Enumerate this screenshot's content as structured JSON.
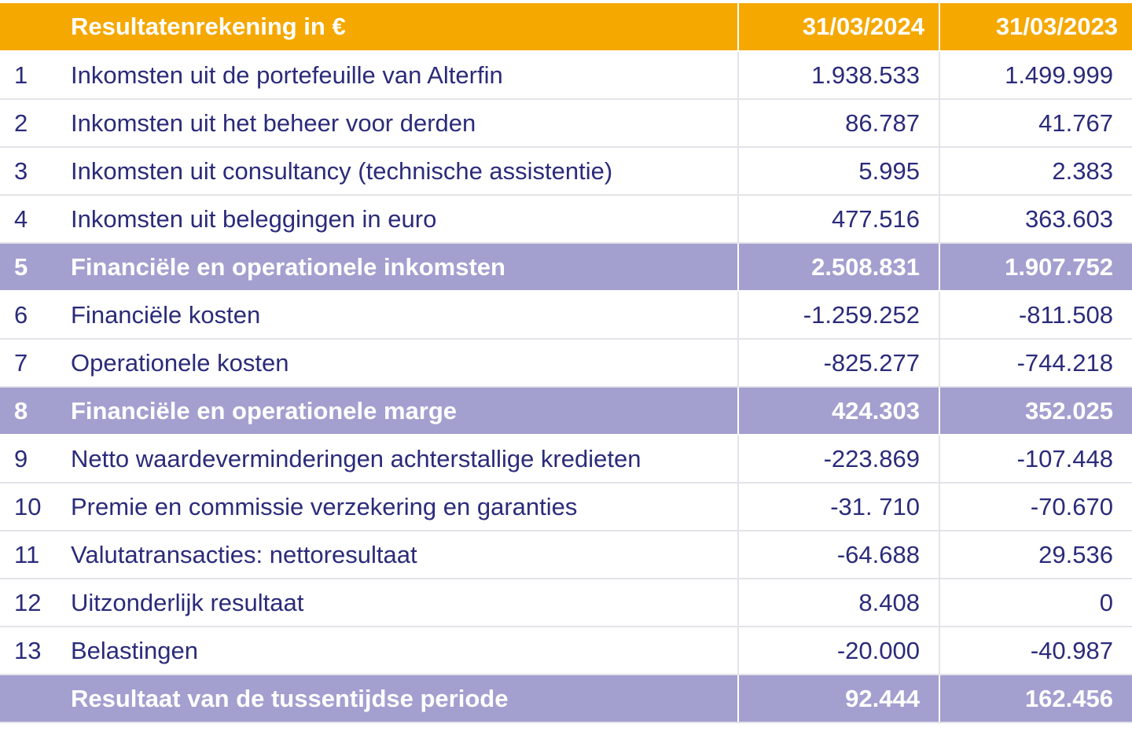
{
  "table": {
    "header": {
      "title": "Resultatenrekening in €",
      "col_2024": "31/03/2024",
      "col_2023": "31/03/2023"
    },
    "rows": [
      {
        "num": "1",
        "label": "Inkomsten uit de portefeuille van Alterfin",
        "v2024": "1.938.533",
        "v2023": "1.499.999"
      },
      {
        "num": "2",
        "label": "Inkomsten uit het beheer voor derden",
        "v2024": "86.787",
        "v2023": "41.767"
      },
      {
        "num": "3",
        "label": "Inkomsten uit consultancy (technische assistentie)",
        "v2024": "5.995",
        "v2023": "2.383"
      },
      {
        "num": "4",
        "label": "Inkomsten uit beleggingen in euro",
        "v2024": "477.516",
        "v2023": "363.603"
      },
      {
        "num": "5",
        "label": "Financiële en operationele inkomsten",
        "v2024": "2.508.831",
        "v2023": "1.907.752"
      },
      {
        "num": "6",
        "label": "Financiële kosten",
        "v2024": "-1.259.252",
        "v2023": "-811.508"
      },
      {
        "num": "7",
        "label": "Operationele kosten",
        "v2024": "-825.277",
        "v2023": "-744.218"
      },
      {
        "num": "8",
        "label": "Financiële en operationele marge",
        "v2024": "424.303",
        "v2023": "352.025"
      },
      {
        "num": "9",
        "label": "Netto waardeverminderingen achterstallige kredieten",
        "v2024": "-223.869",
        "v2023": "-107.448"
      },
      {
        "num": "10",
        "label": "Premie en commissie verzekering en garanties",
        "v2024": "-31. 710",
        "v2023": "-70.670"
      },
      {
        "num": "11",
        "label": "Valutatransacties: nettoresultaat",
        "v2024": "-64.688",
        "v2023": "29.536"
      },
      {
        "num": "12",
        "label": "Uitzonderlijk resultaat",
        "v2024": "8.408",
        "v2023": "0"
      },
      {
        "num": "13",
        "label": "Belastingen",
        "v2024": "-20.000",
        "v2023": "-40.987"
      }
    ],
    "total": {
      "label": "Resultaat van de tussentijdse periode",
      "v2024": "92.444",
      "v2023": "162.456"
    }
  },
  "colors": {
    "header_bg": "#f5a800",
    "subtotal_bg": "#a39fcf",
    "text": "#2b2b7a",
    "grid": "#e3e3ea"
  }
}
